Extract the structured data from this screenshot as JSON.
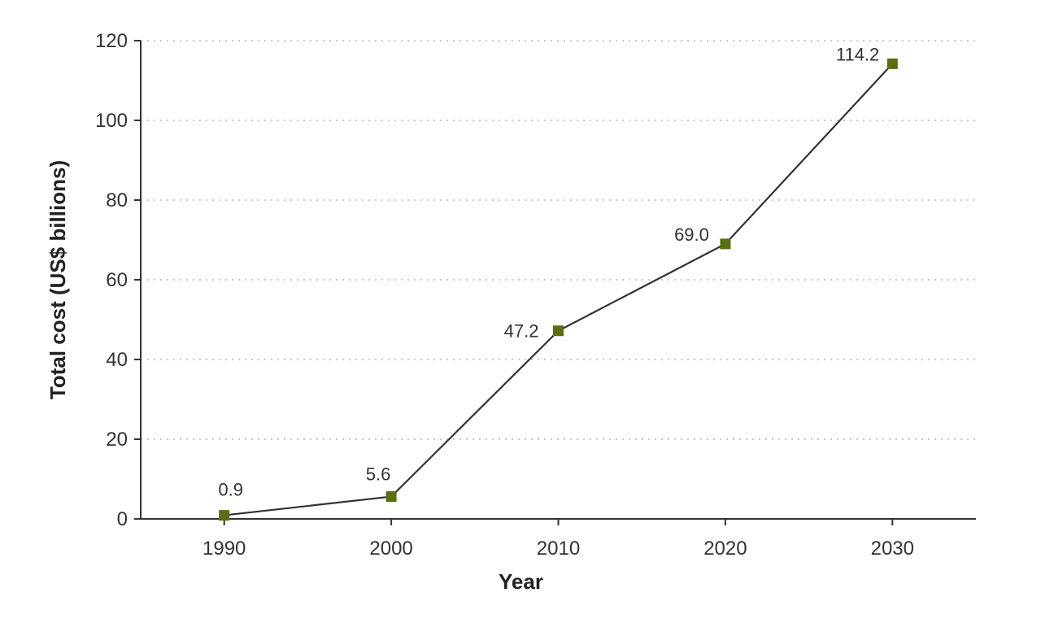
{
  "chart_data": {
    "type": "line",
    "title": "",
    "xlabel": "Year",
    "ylabel": "Total cost (US$ billions)",
    "x": [
      1990,
      2000,
      2010,
      2020,
      2030
    ],
    "series": [
      {
        "values": [
          0.9,
          5.6,
          47.2,
          69.0,
          114.2
        ]
      }
    ],
    "data_labels": [
      "0.9",
      "5.6",
      "47.2",
      "69.0",
      "114.2"
    ],
    "x_tick_labels": [
      "1990",
      "2000",
      "2010",
      "2020",
      "2030"
    ],
    "y_tick_labels": [
      "0",
      "20",
      "40",
      "60",
      "80",
      "100",
      "120"
    ],
    "y_ticks": [
      0,
      20,
      40,
      60,
      80,
      100,
      120
    ],
    "ylim": [
      0,
      120
    ],
    "xlim": [
      1985,
      2035
    ],
    "grid": "horizontal dotted",
    "legend": "none",
    "marker": "square",
    "colors": {
      "marker": "#5a6e12",
      "line": "#333333",
      "grid": "#c8c8c8"
    }
  }
}
